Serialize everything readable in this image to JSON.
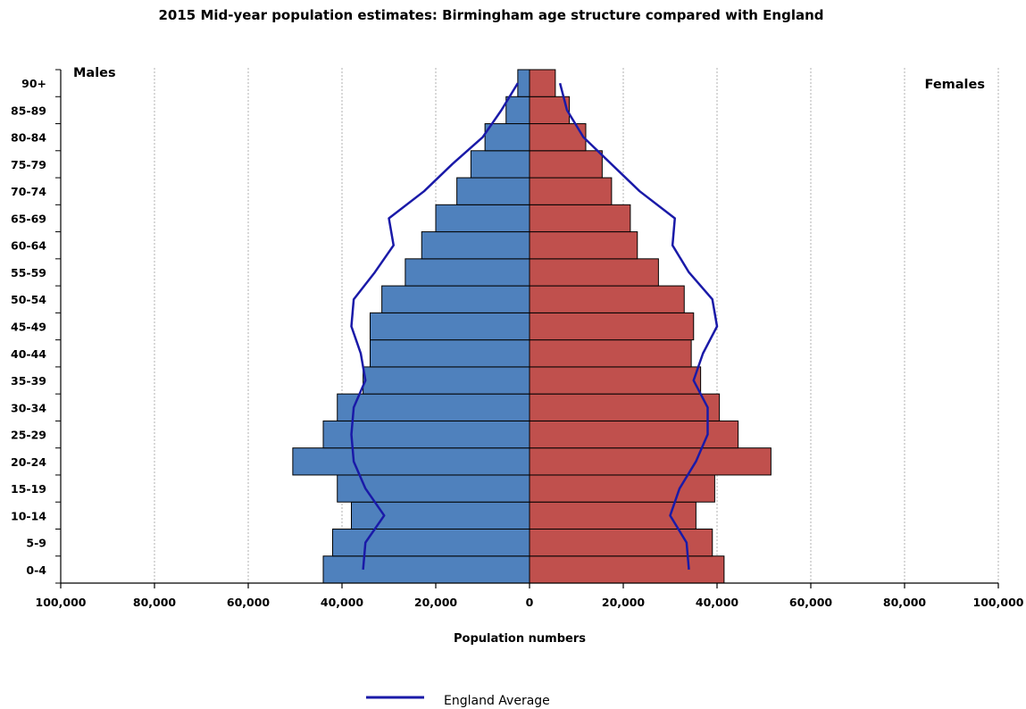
{
  "chart_data": {
    "type": "bar",
    "subtype": "population-pyramid",
    "title": "2015 Mid-year population estimates: Birmingham age structure compared with England",
    "xlabel": "Population numbers",
    "male_label": "Males",
    "female_label": "Females",
    "xlim": [
      -100000,
      100000
    ],
    "x_ticks": [
      -100000,
      -80000,
      -60000,
      -40000,
      -20000,
      0,
      20000,
      40000,
      60000,
      80000,
      100000
    ],
    "x_tick_labels": [
      "100,000",
      "80,000",
      "60,000",
      "40,000",
      "20,000",
      "0",
      "20,000",
      "40,000",
      "60,000",
      "80,000",
      "100,000"
    ],
    "grid": "vertical-dotted",
    "categories": [
      "0-4",
      "5-9",
      "10-14",
      "15-19",
      "20-24",
      "25-29",
      "30-34",
      "35-39",
      "40-44",
      "45-49",
      "50-54",
      "55-59",
      "60-64",
      "65-69",
      "70-74",
      "75-79",
      "80-84",
      "85-89",
      "90+"
    ],
    "series": [
      {
        "name": "Males",
        "color": "#4f81bd",
        "values": [
          44000,
          42000,
          38000,
          41000,
          50500,
          44000,
          41000,
          35500,
          34000,
          34000,
          31500,
          26500,
          23000,
          20000,
          15500,
          12500,
          9500,
          5000,
          2500
        ]
      },
      {
        "name": "Females",
        "color": "#c0504d",
        "values": [
          41500,
          39000,
          35500,
          39500,
          51500,
          44500,
          40500,
          36500,
          34500,
          35000,
          33000,
          27500,
          23000,
          21500,
          17500,
          15500,
          12000,
          8500,
          5500
        ]
      },
      {
        "name": "England Average",
        "color": "#1a1aa8",
        "type": "line",
        "male_values": [
          35500,
          35000,
          31000,
          35000,
          37500,
          38000,
          37500,
          35000,
          36000,
          38000,
          37500,
          33000,
          29000,
          30000,
          22500,
          16500,
          10000,
          6000,
          2500
        ],
        "female_values": [
          34000,
          33500,
          30000,
          32000,
          35500,
          38000,
          38000,
          35000,
          37000,
          40000,
          39000,
          34000,
          30500,
          31000,
          23500,
          17500,
          11500,
          8000,
          6500
        ]
      }
    ],
    "legend": {
      "position": "bottom",
      "label": "England Average"
    }
  }
}
